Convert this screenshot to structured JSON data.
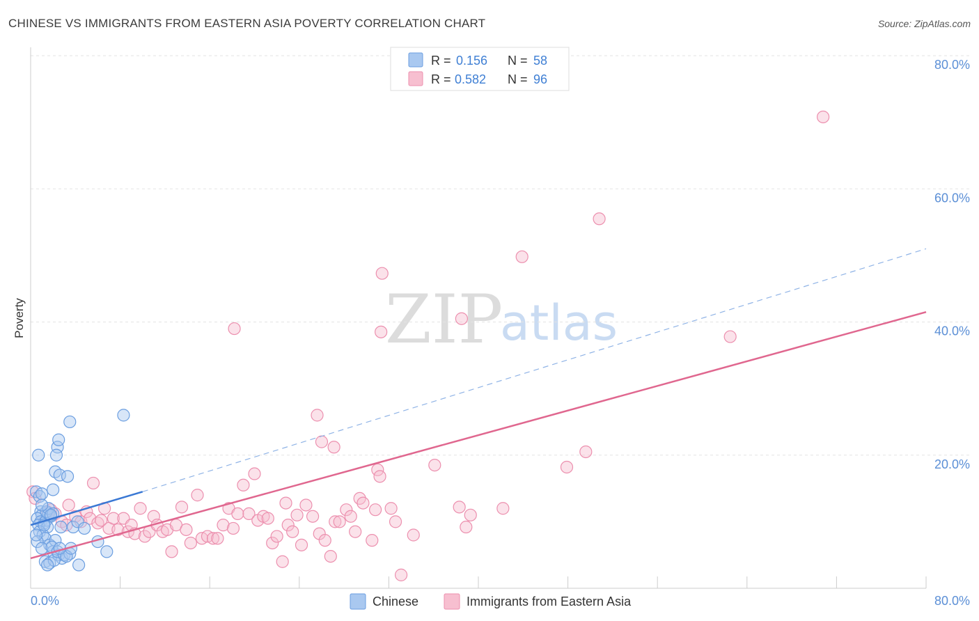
{
  "chart_data": {
    "type": "scatter",
    "title": "CHINESE VS IMMIGRANTS FROM EASTERN ASIA POVERTY CORRELATION CHART",
    "source": "Source: ZipAtlas.com",
    "ylabel": "Poverty",
    "xlim": [
      0,
      80
    ],
    "ylim": [
      0,
      80
    ],
    "x_tick_labels": [
      "0.0%",
      "80.0%"
    ],
    "y_tick_values": [
      20,
      40,
      60,
      80
    ],
    "y_tick_labels": [
      "20.0%",
      "40.0%",
      "60.0%",
      "80.0%"
    ],
    "watermark": {
      "zip": "ZIP",
      "atlas": "atlas"
    },
    "legend": {
      "entries": [
        {
          "r_label": "R =",
          "r_value": "0.156",
          "n_label": "N =",
          "n_value": "58"
        },
        {
          "r_label": "R =",
          "r_value": "0.582",
          "n_label": "N =",
          "n_value": "96"
        }
      ]
    },
    "colors": {
      "chinese_fill": "#a9c8f0",
      "chinese_stroke": "#6b9ee0",
      "chinese_line": "#3a78d4",
      "immigrants_fill": "#f7bfd0",
      "immigrants_stroke": "#ec8fae",
      "immigrants_line": "#e0678f",
      "grid": "#e3e3e3"
    },
    "series": [
      {
        "name": "Chinese",
        "trend": {
          "x0": 0,
          "y0": 9.5,
          "x1": 10,
          "y1": 14.5,
          "dashed_to_x": 80,
          "dashed_to_y": 51
        },
        "points": [
          [
            0.5,
            14.5
          ],
          [
            0.7,
            20
          ],
          [
            0.8,
            13.8
          ],
          [
            0.9,
            11.5
          ],
          [
            1.0,
            11.0
          ],
          [
            0.6,
            10.5
          ],
          [
            0.9,
            10.0
          ],
          [
            1.2,
            9.8
          ],
          [
            1.4,
            10.2
          ],
          [
            0.7,
            9.5
          ],
          [
            1.6,
            11.2
          ],
          [
            1.8,
            10.8
          ],
          [
            1.5,
            9.2
          ],
          [
            0.8,
            8.5
          ],
          [
            1.1,
            8.0
          ],
          [
            1.3,
            7.5
          ],
          [
            0.6,
            7.0
          ],
          [
            1.7,
            6.5
          ],
          [
            1.0,
            6.0
          ],
          [
            2.0,
            5.5
          ],
          [
            2.2,
            7.2
          ],
          [
            1.9,
            6.2
          ],
          [
            2.5,
            5.0
          ],
          [
            2.8,
            4.5
          ],
          [
            1.3,
            4.0
          ],
          [
            1.7,
            3.8
          ],
          [
            2.1,
            4.2
          ],
          [
            2.4,
            5.5
          ],
          [
            3.0,
            5.0
          ],
          [
            3.5,
            5.2
          ],
          [
            3.2,
            4.8
          ],
          [
            2.6,
            6.0
          ],
          [
            2.0,
            14.8
          ],
          [
            2.2,
            17.5
          ],
          [
            2.4,
            21.2
          ],
          [
            2.5,
            22.3
          ],
          [
            2.3,
            20.0
          ],
          [
            2.6,
            17.0
          ],
          [
            3.3,
            16.8
          ],
          [
            3.5,
            25.0
          ],
          [
            8.3,
            26.0
          ],
          [
            1.0,
            14.2
          ],
          [
            1.4,
            11.5
          ],
          [
            1.6,
            12.0
          ],
          [
            1.2,
            9.5
          ],
          [
            3.8,
            9.2
          ],
          [
            4.2,
            10.0
          ],
          [
            4.8,
            9.0
          ],
          [
            6.0,
            7.0
          ],
          [
            6.8,
            5.5
          ],
          [
            4.3,
            3.5
          ],
          [
            1.5,
            3.5
          ],
          [
            2.0,
            11.2
          ],
          [
            1.0,
            12.5
          ],
          [
            0.5,
            8.0
          ],
          [
            2.7,
            9.2
          ],
          [
            3.6,
            6.0
          ],
          [
            1.8,
            11.0
          ]
        ]
      },
      {
        "name": "Immigrants from Eastern Asia",
        "trend": {
          "x0": 0,
          "y0": 4.5,
          "x1": 80,
          "y1": 41.5
        },
        "points": [
          [
            0.2,
            14.5
          ],
          [
            0.4,
            13.5
          ],
          [
            1.5,
            11.5
          ],
          [
            1.8,
            11.8
          ],
          [
            2.2,
            11.2
          ],
          [
            2.8,
            10.0
          ],
          [
            3.2,
            9.5
          ],
          [
            3.4,
            12.5
          ],
          [
            4.0,
            10.8
          ],
          [
            4.5,
            10.0
          ],
          [
            5.0,
            11.5
          ],
          [
            5.3,
            10.5
          ],
          [
            5.6,
            15.8
          ],
          [
            6.0,
            9.8
          ],
          [
            6.3,
            10.2
          ],
          [
            6.6,
            12.0
          ],
          [
            7.0,
            9.0
          ],
          [
            7.4,
            10.5
          ],
          [
            7.8,
            8.8
          ],
          [
            8.3,
            10.5
          ],
          [
            8.7,
            8.5
          ],
          [
            9.0,
            9.5
          ],
          [
            9.3,
            8.2
          ],
          [
            9.8,
            12.0
          ],
          [
            10.2,
            7.8
          ],
          [
            10.6,
            8.5
          ],
          [
            11.0,
            10.8
          ],
          [
            11.3,
            9.5
          ],
          [
            11.8,
            8.5
          ],
          [
            12.2,
            8.8
          ],
          [
            12.6,
            5.5
          ],
          [
            13.0,
            9.5
          ],
          [
            13.5,
            12.2
          ],
          [
            13.9,
            8.8
          ],
          [
            14.3,
            6.8
          ],
          [
            14.9,
            14.0
          ],
          [
            15.3,
            7.5
          ],
          [
            15.8,
            7.8
          ],
          [
            16.3,
            7.5
          ],
          [
            16.7,
            7.5
          ],
          [
            17.2,
            9.5
          ],
          [
            17.7,
            12.0
          ],
          [
            18.1,
            9.0
          ],
          [
            18.5,
            11.2
          ],
          [
            19.0,
            15.5
          ],
          [
            19.5,
            11.2
          ],
          [
            20.0,
            17.2
          ],
          [
            20.3,
            10.2
          ],
          [
            20.8,
            10.8
          ],
          [
            21.2,
            10.5
          ],
          [
            21.6,
            6.8
          ],
          [
            22.0,
            7.8
          ],
          [
            22.5,
            4.0
          ],
          [
            23.0,
            9.5
          ],
          [
            23.4,
            8.5
          ],
          [
            23.8,
            11.0
          ],
          [
            24.2,
            6.5
          ],
          [
            24.6,
            12.5
          ],
          [
            25.2,
            10.8
          ],
          [
            25.8,
            8.2
          ],
          [
            26.3,
            7.2
          ],
          [
            26.8,
            4.8
          ],
          [
            27.2,
            10.0
          ],
          [
            27.6,
            10.0
          ],
          [
            28.2,
            11.8
          ],
          [
            28.6,
            10.8
          ],
          [
            29.0,
            8.5
          ],
          [
            29.4,
            13.5
          ],
          [
            30.5,
            7.2
          ],
          [
            30.8,
            11.8
          ],
          [
            31.0,
            17.8
          ],
          [
            31.2,
            16.8
          ],
          [
            32.2,
            12.0
          ],
          [
            32.6,
            10.0
          ],
          [
            33.1,
            2.0
          ],
          [
            36.1,
            18.5
          ],
          [
            38.3,
            12.2
          ],
          [
            38.9,
            9.2
          ],
          [
            39.3,
            11.0
          ],
          [
            42.2,
            12.0
          ],
          [
            47.9,
            18.2
          ],
          [
            49.6,
            20.5
          ],
          [
            18.2,
            39.0
          ],
          [
            31.4,
            47.3
          ],
          [
            38.5,
            40.5
          ],
          [
            31.3,
            38.5
          ],
          [
            43.9,
            49.8
          ],
          [
            50.8,
            55.5
          ],
          [
            62.5,
            37.8
          ],
          [
            70.8,
            70.8
          ],
          [
            25.6,
            26.0
          ],
          [
            26.0,
            22.0
          ],
          [
            27.1,
            21.2
          ],
          [
            29.7,
            12.8
          ],
          [
            34.2,
            8.0
          ],
          [
            22.8,
            12.8
          ]
        ]
      }
    ]
  }
}
